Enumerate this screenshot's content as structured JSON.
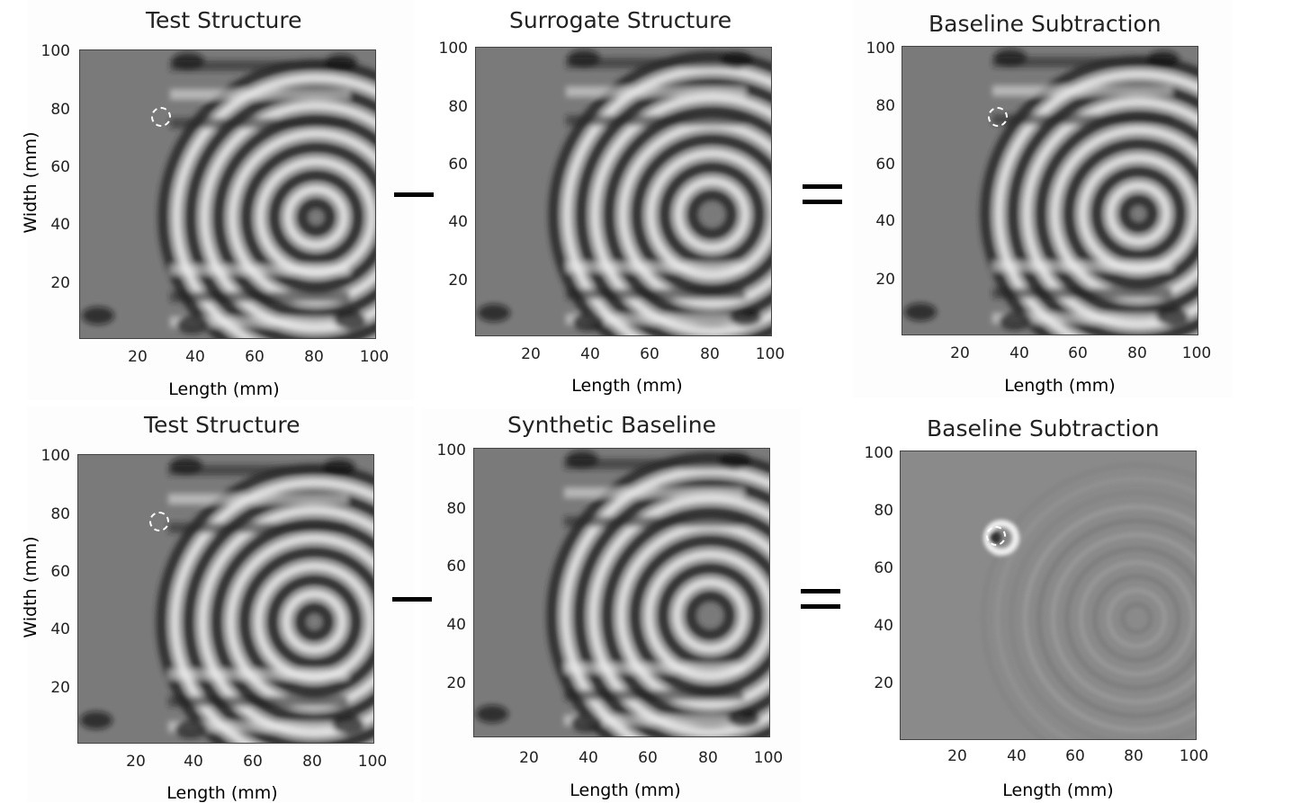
{
  "panels": [
    {
      "title": "Test Structure",
      "xlabel": "Length (mm)",
      "ylabel": "Width (mm)",
      "variant": "test",
      "marker": true
    },
    {
      "title": "Surrogate Structure",
      "xlabel": "Length (mm)",
      "ylabel": "",
      "variant": "surrogate",
      "marker": false
    },
    {
      "title": "Baseline Subtraction",
      "xlabel": "Length (mm)",
      "ylabel": "",
      "variant": "diff-strong",
      "marker": true
    },
    {
      "title": "Test Structure",
      "xlabel": "Length (mm)",
      "ylabel": "Width (mm)",
      "variant": "test",
      "marker": true
    },
    {
      "title": "Synthetic Baseline",
      "xlabel": "Length (mm)",
      "ylabel": "",
      "variant": "synthetic",
      "marker": false
    },
    {
      "title": "Baseline Subtraction",
      "xlabel": "Length (mm)",
      "ylabel": "",
      "variant": "diff-weak",
      "marker": true
    }
  ],
  "x_ticks": [
    "20",
    "40",
    "60",
    "80",
    "100"
  ],
  "y_ticks": [
    "100",
    "80",
    "60",
    "40",
    "20"
  ],
  "axis_range": [
    0,
    100
  ],
  "damage_location_mm": {
    "x": 28,
    "y": 77
  },
  "operators": [
    "−",
    "=",
    "−",
    "="
  ],
  "colormap": "gray"
}
